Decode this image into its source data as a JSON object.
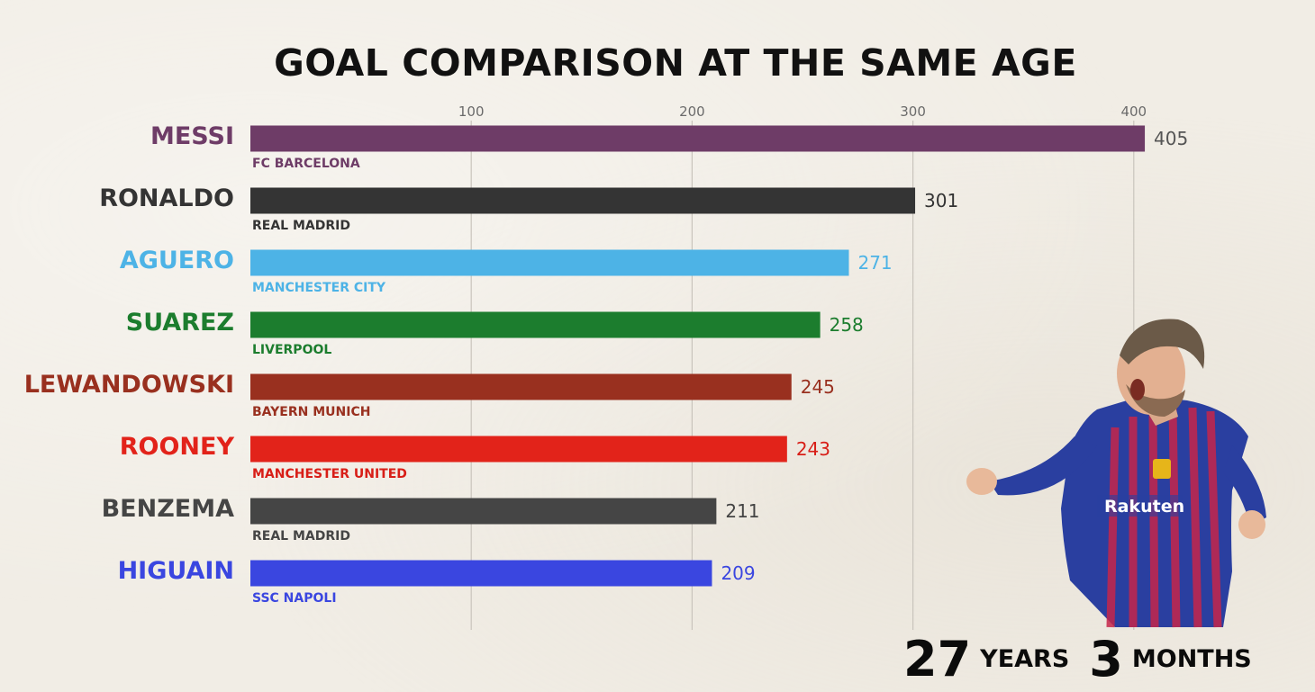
{
  "chart_data": {
    "type": "bar",
    "orientation": "horizontal",
    "title": "GOAL COMPARISON AT THE SAME AGE",
    "categories": [
      "MESSI",
      "RONALDO",
      "AGUERO",
      "SUAREZ",
      "LEWANDOWSKI",
      "ROONEY",
      "BENZEMA",
      "HIGUAIN"
    ],
    "clubs": [
      "FC BARCELONA",
      "REAL MADRID",
      "MANCHESTER CITY",
      "LIVERPOOL",
      "BAYERN MUNICH",
      "MANCHESTER UNITED",
      "REAL MADRID",
      "SSC NAPOLI"
    ],
    "values": [
      405,
      301,
      271,
      258,
      245,
      243,
      211,
      209
    ],
    "value_labels": [
      "405",
      "301",
      "271",
      "258",
      "245",
      "243",
      "211",
      "209"
    ],
    "colors": [
      "#6e3c67",
      "#343434",
      "#4db3e6",
      "#1c7d2e",
      "#99301f",
      "#e2231a",
      "#454545",
      "#3a46e0"
    ],
    "club_colors": [
      "#6e3c67",
      "#343434",
      "#4db3e6",
      "#1c7d2e",
      "#99301f",
      "#d81e17",
      "#454545",
      "#3a46e0"
    ],
    "value_colors": [
      "#555555",
      "#333333",
      "#4db3e6",
      "#1c7d2e",
      "#99301f",
      "#d81e17",
      "#444444",
      "#3a46e0"
    ],
    "xticks": [
      100,
      200,
      300,
      400
    ],
    "xlim": [
      0,
      405
    ],
    "grid": true,
    "legend": "none"
  },
  "age": {
    "years_value": "27",
    "years_label": "YEARS",
    "months_value": "3",
    "months_label": "MONTHS"
  },
  "image": {
    "icon": "player-photo-icon"
  }
}
